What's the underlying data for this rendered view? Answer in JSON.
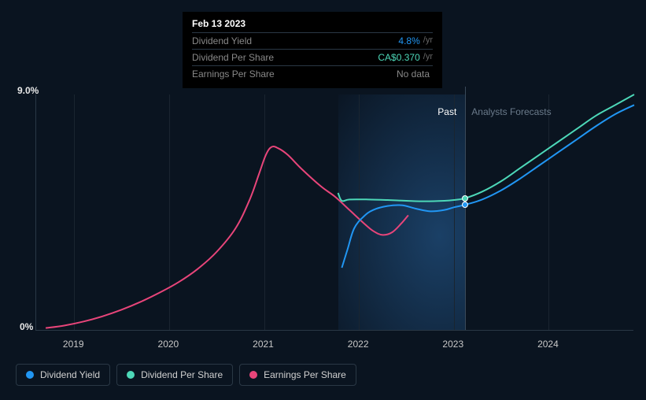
{
  "chart": {
    "type": "line",
    "background_color": "#0a1420",
    "grid_color": "#1a2530",
    "axis_color": "#2a3845",
    "xlim": [
      2018.6,
      2024.9
    ],
    "ylim": [
      0,
      9
    ],
    "y_ticks": [
      {
        "v": 0,
        "label": "0%"
      },
      {
        "v": 9,
        "label": "9.0%"
      }
    ],
    "x_ticks": [
      {
        "v": 2019,
        "label": "2019"
      },
      {
        "v": 2020,
        "label": "2020"
      },
      {
        "v": 2021,
        "label": "2021"
      },
      {
        "v": 2022,
        "label": "2022"
      },
      {
        "v": 2023,
        "label": "2023"
      },
      {
        "v": 2024,
        "label": "2024"
      }
    ],
    "sections": {
      "past": {
        "label": "Past",
        "end": 2023.12,
        "label_color": "#ffffff"
      },
      "forecast": {
        "label": "Analysts Forecasts",
        "start": 2023.12,
        "label_color": "#6a7a8a"
      }
    },
    "cursor_x": 2023.12,
    "shade": {
      "start": 2021.78,
      "end": 2023.12,
      "fill": "radial-gradient(ellipse at 80% 60%, rgba(40,100,160,0.55), rgba(15,40,70,0.1))"
    },
    "series": {
      "dividend_yield": {
        "label": "Dividend Yield",
        "color": "#2196f3",
        "line_width": 2,
        "points": [
          [
            2021.82,
            2.4
          ],
          [
            2021.88,
            3.1
          ],
          [
            2021.95,
            3.9
          ],
          [
            2022.05,
            4.35
          ],
          [
            2022.15,
            4.6
          ],
          [
            2022.3,
            4.75
          ],
          [
            2022.45,
            4.78
          ],
          [
            2022.6,
            4.65
          ],
          [
            2022.75,
            4.55
          ],
          [
            2022.9,
            4.6
          ],
          [
            2023.0,
            4.7
          ],
          [
            2023.12,
            4.8
          ],
          [
            2023.3,
            5.0
          ],
          [
            2023.5,
            5.35
          ],
          [
            2023.7,
            5.8
          ],
          [
            2023.9,
            6.3
          ],
          [
            2024.1,
            6.8
          ],
          [
            2024.3,
            7.3
          ],
          [
            2024.5,
            7.8
          ],
          [
            2024.7,
            8.25
          ],
          [
            2024.9,
            8.6
          ]
        ],
        "marker_at": [
          2023.12,
          4.8
        ]
      },
      "dividend_per_share": {
        "label": "Dividend Per Share",
        "color": "#4dd8b8",
        "line_width": 2,
        "points": [
          [
            2021.78,
            5.25
          ],
          [
            2021.82,
            4.95
          ],
          [
            2021.9,
            5.0
          ],
          [
            2022.1,
            5.0
          ],
          [
            2022.3,
            4.98
          ],
          [
            2022.5,
            4.95
          ],
          [
            2022.7,
            4.93
          ],
          [
            2022.9,
            4.95
          ],
          [
            2023.0,
            4.98
          ],
          [
            2023.12,
            5.05
          ],
          [
            2023.3,
            5.3
          ],
          [
            2023.5,
            5.7
          ],
          [
            2023.7,
            6.2
          ],
          [
            2023.9,
            6.7
          ],
          [
            2024.1,
            7.2
          ],
          [
            2024.3,
            7.7
          ],
          [
            2024.5,
            8.2
          ],
          [
            2024.7,
            8.6
          ],
          [
            2024.9,
            9.0
          ]
        ],
        "marker_at": [
          2023.12,
          5.05
        ]
      },
      "earnings_per_share": {
        "label": "Earnings Per Share",
        "color": "#e8457a",
        "line_width": 2,
        "points": [
          [
            2018.7,
            0.1
          ],
          [
            2018.9,
            0.2
          ],
          [
            2019.1,
            0.35
          ],
          [
            2019.3,
            0.55
          ],
          [
            2019.5,
            0.8
          ],
          [
            2019.7,
            1.1
          ],
          [
            2019.9,
            1.45
          ],
          [
            2020.1,
            1.85
          ],
          [
            2020.3,
            2.35
          ],
          [
            2020.5,
            3.0
          ],
          [
            2020.7,
            3.9
          ],
          [
            2020.85,
            5.0
          ],
          [
            2020.95,
            6.0
          ],
          [
            2021.02,
            6.7
          ],
          [
            2021.08,
            7.0
          ],
          [
            2021.15,
            6.95
          ],
          [
            2021.25,
            6.7
          ],
          [
            2021.4,
            6.15
          ],
          [
            2021.6,
            5.5
          ],
          [
            2021.75,
            5.1
          ],
          [
            2021.9,
            4.6
          ],
          [
            2022.05,
            4.1
          ],
          [
            2022.15,
            3.8
          ],
          [
            2022.25,
            3.65
          ],
          [
            2022.35,
            3.75
          ],
          [
            2022.45,
            4.1
          ],
          [
            2022.52,
            4.4
          ]
        ]
      }
    }
  },
  "tooltip": {
    "date": "Feb 13 2023",
    "rows": [
      {
        "metric": "Dividend Yield",
        "value": "4.8%",
        "unit": "/yr",
        "color": "#2196f3"
      },
      {
        "metric": "Dividend Per Share",
        "value": "CA$0.370",
        "unit": "/yr",
        "color": "#4dd8b8"
      },
      {
        "metric": "Earnings Per Share",
        "value": "No data",
        "unit": "",
        "color": "#888"
      }
    ]
  },
  "legend": [
    {
      "key": "dividend_yield",
      "label": "Dividend Yield",
      "color": "#2196f3"
    },
    {
      "key": "dividend_per_share",
      "label": "Dividend Per Share",
      "color": "#4dd8b8"
    },
    {
      "key": "earnings_per_share",
      "label": "Earnings Per Share",
      "color": "#e8457a"
    }
  ]
}
